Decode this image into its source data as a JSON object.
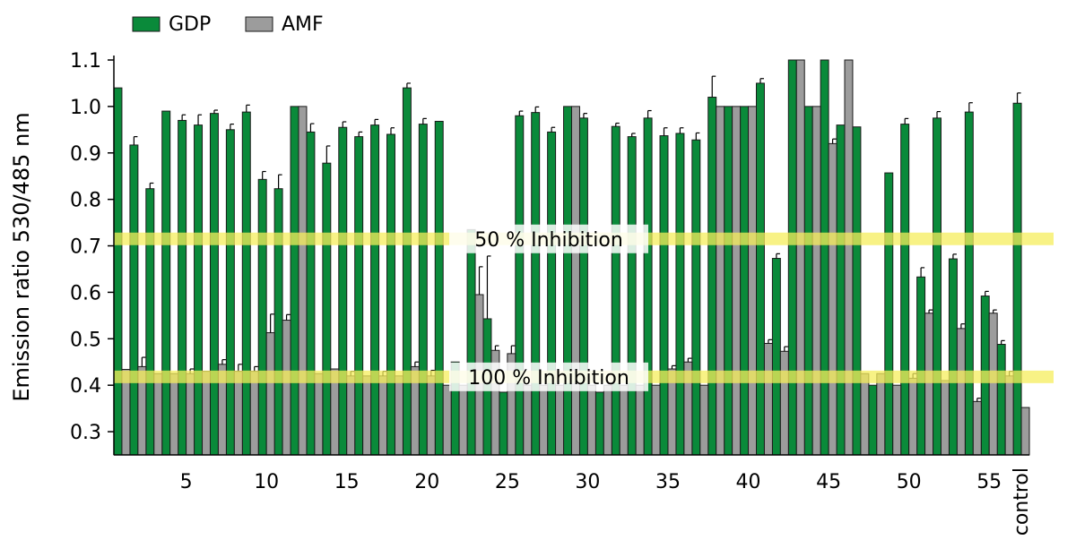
{
  "chart_data": {
    "type": "bar",
    "ylabel": "Emission ratio 530/485 nm",
    "xlabel": "",
    "ylim": [
      0.25,
      1.1
    ],
    "yticks": [
      "0.3",
      "0.4",
      "0.5",
      "0.6",
      "0.7",
      "0.8",
      "0.9",
      "1.0",
      "1.1"
    ],
    "categories": [
      "1",
      "2",
      "3",
      "4",
      "5",
      "6",
      "7",
      "8",
      "9",
      "10",
      "11",
      "12",
      "13",
      "14",
      "15",
      "16",
      "17",
      "18",
      "19",
      "20",
      "21",
      "22",
      "23",
      "24",
      "25",
      "26",
      "27",
      "28",
      "29",
      "30",
      "31",
      "32",
      "33",
      "34",
      "35",
      "36",
      "37",
      "38",
      "39",
      "40",
      "41",
      "42",
      "43",
      "44",
      "45",
      "46",
      "47",
      "48",
      "49",
      "50",
      "51",
      "52",
      "53",
      "54",
      "55",
      "56",
      "control"
    ],
    "xtick_labels": [
      {
        "category": "5",
        "label": "5"
      },
      {
        "category": "10",
        "label": "10"
      },
      {
        "category": "15",
        "label": "15"
      },
      {
        "category": "20",
        "label": "20"
      },
      {
        "category": "25",
        "label": "25"
      },
      {
        "category": "30",
        "label": "30"
      },
      {
        "category": "35",
        "label": "35"
      },
      {
        "category": "40",
        "label": "40"
      },
      {
        "category": "45",
        "label": "45"
      },
      {
        "category": "50",
        "label": "50"
      },
      {
        "category": "55",
        "label": "55"
      },
      {
        "category": "control",
        "label": "control"
      }
    ],
    "series": [
      {
        "name": "GDP",
        "color": "#0a8a3a",
        "values": [
          1.04,
          0.917,
          0.823,
          0.99,
          0.97,
          0.96,
          0.985,
          0.95,
          0.988,
          0.843,
          0.823,
          1.0,
          0.945,
          0.878,
          0.955,
          0.935,
          0.96,
          0.94,
          1.04,
          0.962,
          0.968,
          0.45,
          0.735,
          0.543,
          0.385,
          0.98,
          0.987,
          0.945,
          1.0,
          0.975,
          0.385,
          0.957,
          0.935,
          0.975,
          0.937,
          0.942,
          0.928,
          1.02,
          1.0,
          1.0,
          1.05,
          0.673,
          1.1,
          1.0,
          1.1,
          0.96,
          0.956,
          0.4,
          0.857,
          0.962,
          0.633,
          0.975,
          0.672,
          0.988,
          0.592,
          0.488,
          1.007
        ],
        "errors": [
          0,
          0.018,
          0.012,
          0,
          0.012,
          0.022,
          0.007,
          0.012,
          0.015,
          0.017,
          0.03,
          0,
          0.018,
          0.037,
          0.012,
          0.01,
          0.012,
          0.014,
          0.01,
          0.012,
          0,
          0,
          0,
          0.135,
          0,
          0.01,
          0.012,
          0.01,
          0,
          0.01,
          0,
          0.007,
          0.007,
          0.016,
          0.017,
          0.012,
          0.015,
          0.045,
          0,
          0,
          0.01,
          0.01,
          0,
          0,
          0,
          0,
          0,
          0,
          0,
          0.012,
          0.02,
          0.014,
          0.01,
          0.02,
          0.01,
          0.008,
          0.022
        ]
      },
      {
        "name": "AMF",
        "color": "#9c9c9c",
        "values": [
          0.434,
          0.44,
          0.425,
          0.425,
          0.425,
          0.43,
          0.445,
          0.43,
          0.43,
          0.513,
          0.54,
          1.0,
          0.425,
          0.435,
          0.42,
          0.42,
          0.42,
          0.42,
          0.44,
          0.42,
          0.4,
          0.4,
          0.595,
          0.475,
          0.468,
          0.4,
          0.4,
          0.4,
          1.0,
          0.4,
          0.4,
          0.4,
          0.4,
          0.4,
          0.435,
          0.45,
          0.4,
          1.0,
          1.0,
          1.0,
          0.49,
          0.473,
          1.1,
          1.0,
          0.92,
          1.1,
          0.425,
          0.425,
          0.4,
          0.415,
          0.555,
          0.41,
          0.522,
          0.365,
          0.555,
          0.42,
          0.352
        ],
        "errors": [
          0,
          0.02,
          0,
          0,
          0.01,
          0,
          0.01,
          0.015,
          0.01,
          0.04,
          0.012,
          0,
          0,
          0,
          0.01,
          0,
          0.01,
          0,
          0.01,
          0.012,
          0,
          0,
          0.06,
          0.01,
          0.017,
          0,
          0,
          0,
          0,
          0,
          0,
          0,
          0,
          0,
          0.007,
          0.008,
          0,
          0,
          0,
          0,
          0.008,
          0.01,
          0,
          0,
          0.01,
          0,
          0,
          0,
          0,
          0.01,
          0.007,
          0,
          0.01,
          0.007,
          0.007,
          0.01,
          0
        ]
      }
    ],
    "reference_bands": [
      {
        "label": "50 % Inhibition",
        "value": 0.715,
        "color": "#f5ee5c"
      },
      {
        "label": "100 % Inhibition",
        "value": 0.418,
        "color": "#f5ee5c"
      }
    ],
    "legend_position": "top-left",
    "grid": false
  }
}
